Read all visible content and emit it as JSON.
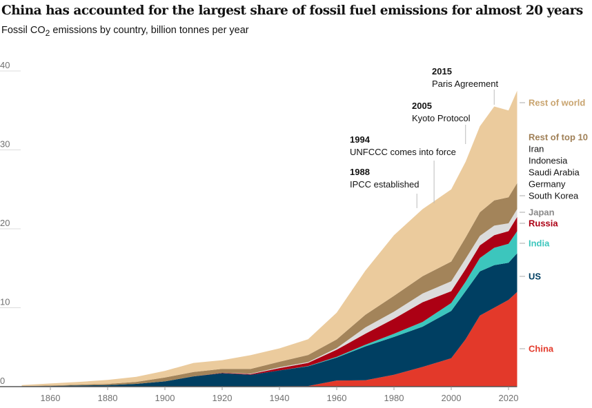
{
  "title": "China has accounted for the largest share of fossil fuel emissions for almost 20 years",
  "subtitle_pre": "Fossil CO",
  "subtitle_sub": "2",
  "subtitle_post": " emissions by country, billion tonnes per year",
  "chart_data": {
    "type": "area",
    "stacked": true,
    "ylim": [
      0,
      40
    ],
    "xlim": [
      1850,
      2023
    ],
    "yticks": [
      0,
      10,
      20,
      30,
      40
    ],
    "xticks": [
      1860,
      1880,
      1900,
      1920,
      1940,
      1960,
      1980,
      2000,
      2020
    ],
    "x": [
      1850,
      1860,
      1870,
      1880,
      1890,
      1900,
      1910,
      1920,
      1930,
      1940,
      1950,
      1960,
      1970,
      1980,
      1990,
      2000,
      2005,
      2010,
      2015,
      2020,
      2023
    ],
    "series": [
      {
        "name": "China",
        "color": "#e3392a",
        "label_color": "#e3392a",
        "values": [
          0,
          0,
          0,
          0,
          0,
          0,
          0,
          0,
          0,
          0.05,
          0.08,
          0.78,
          0.8,
          1.5,
          2.5,
          3.6,
          6,
          9,
          10,
          11,
          12
        ]
      },
      {
        "name": "US",
        "color": "#003f62",
        "label_color": "#003f62",
        "values": [
          0.05,
          0.08,
          0.15,
          0.2,
          0.35,
          0.66,
          1.3,
          1.7,
          1.5,
          2.0,
          2.5,
          2.9,
          4.3,
          4.8,
          5.1,
          6,
          6.1,
          5.6,
          5.4,
          4.7,
          4.9
        ]
      },
      {
        "name": "India",
        "color": "#3cc6bd",
        "label_color": "#3cc6bd",
        "values": [
          0,
          0,
          0,
          0,
          0,
          0,
          0,
          0,
          0,
          0,
          0.03,
          0.1,
          0.2,
          0.4,
          0.6,
          1.0,
          1.2,
          1.7,
          2.2,
          2.4,
          2.8
        ]
      },
      {
        "name": "Russia",
        "color": "#ac0014",
        "label_color": "#ac0014",
        "values": [
          0,
          0,
          0,
          0,
          0,
          0,
          0,
          0.05,
          0.1,
          0.3,
          0.4,
          0.9,
          1.4,
          1.9,
          2.5,
          1.5,
          1.6,
          1.6,
          1.6,
          1.6,
          1.8
        ]
      },
      {
        "name": "Japan",
        "color": "#dcdcdc",
        "label_color": "#8a8a8a",
        "values": [
          0,
          0,
          0,
          0,
          0,
          0,
          0,
          0,
          0.05,
          0.1,
          0.1,
          0.2,
          0.8,
          0.9,
          1.1,
          1.25,
          1.3,
          1.2,
          1.2,
          1.0,
          1.0
        ]
      },
      {
        "name": "Rest of top 10",
        "color": "#a3845a",
        "label_color": "#a08057",
        "values": [
          0.03,
          0.06,
          0.1,
          0.15,
          0.25,
          0.5,
          0.55,
          0.5,
          0.6,
          0.7,
          0.9,
          1.1,
          1.6,
          2.0,
          2.2,
          2.5,
          2.7,
          3.0,
          3.2,
          3.3,
          3.3
        ],
        "members": [
          "Iran",
          "Indonesia",
          "Saudi Arabia",
          "Germany",
          "South Korea"
        ]
      },
      {
        "name": "Rest of world",
        "color": "#ebcb9d",
        "label_color": "#c9a46f",
        "values": [
          0.12,
          0.26,
          0.35,
          0.5,
          0.65,
          0.84,
          1.15,
          1.1,
          1.75,
          1.7,
          2,
          3.4,
          5.6,
          7.7,
          8.5,
          9.15,
          9.6,
          10.9,
          11.9,
          11,
          11.7
        ]
      }
    ],
    "annotations": [
      {
        "year": "1988",
        "text": "IPCC established",
        "x": 1988
      },
      {
        "year": "1994",
        "text": "UNFCCC comes into force",
        "x": 1994
      },
      {
        "year": "2005",
        "text": "Kyoto Protocol",
        "x": 2005
      },
      {
        "year": "2015",
        "text": "Paris Agreement",
        "x": 2015
      }
    ]
  }
}
